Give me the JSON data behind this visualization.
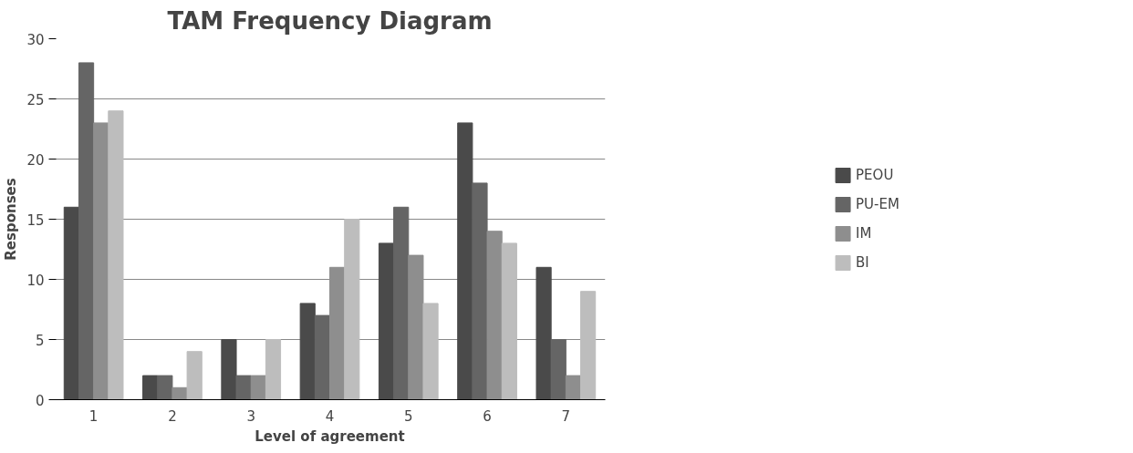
{
  "chart_data": {
    "type": "bar",
    "title": "TAM Frequency Diagram",
    "xlabel": "Level of agreement",
    "ylabel": "Responses",
    "categories": [
      "1",
      "2",
      "3",
      "4",
      "5",
      "6",
      "7"
    ],
    "series": [
      {
        "name": "PEOU",
        "color": "#4a4a4a",
        "values": [
          16,
          2,
          5,
          8,
          13,
          23,
          11
        ]
      },
      {
        "name": "PU-EM",
        "color": "#656565",
        "values": [
          28,
          2,
          2,
          7,
          16,
          18,
          5
        ]
      },
      {
        "name": "IM",
        "color": "#8e8e8e",
        "values": [
          23,
          1,
          2,
          11,
          12,
          14,
          2
        ]
      },
      {
        "name": "BI",
        "color": "#bdbdbd",
        "values": [
          24,
          4,
          5,
          15,
          8,
          13,
          9
        ]
      }
    ],
    "ylim": [
      0,
      30
    ],
    "yticks": [
      0,
      5,
      10,
      15,
      20,
      25,
      30
    ],
    "grid": "y",
    "legend": "right"
  }
}
